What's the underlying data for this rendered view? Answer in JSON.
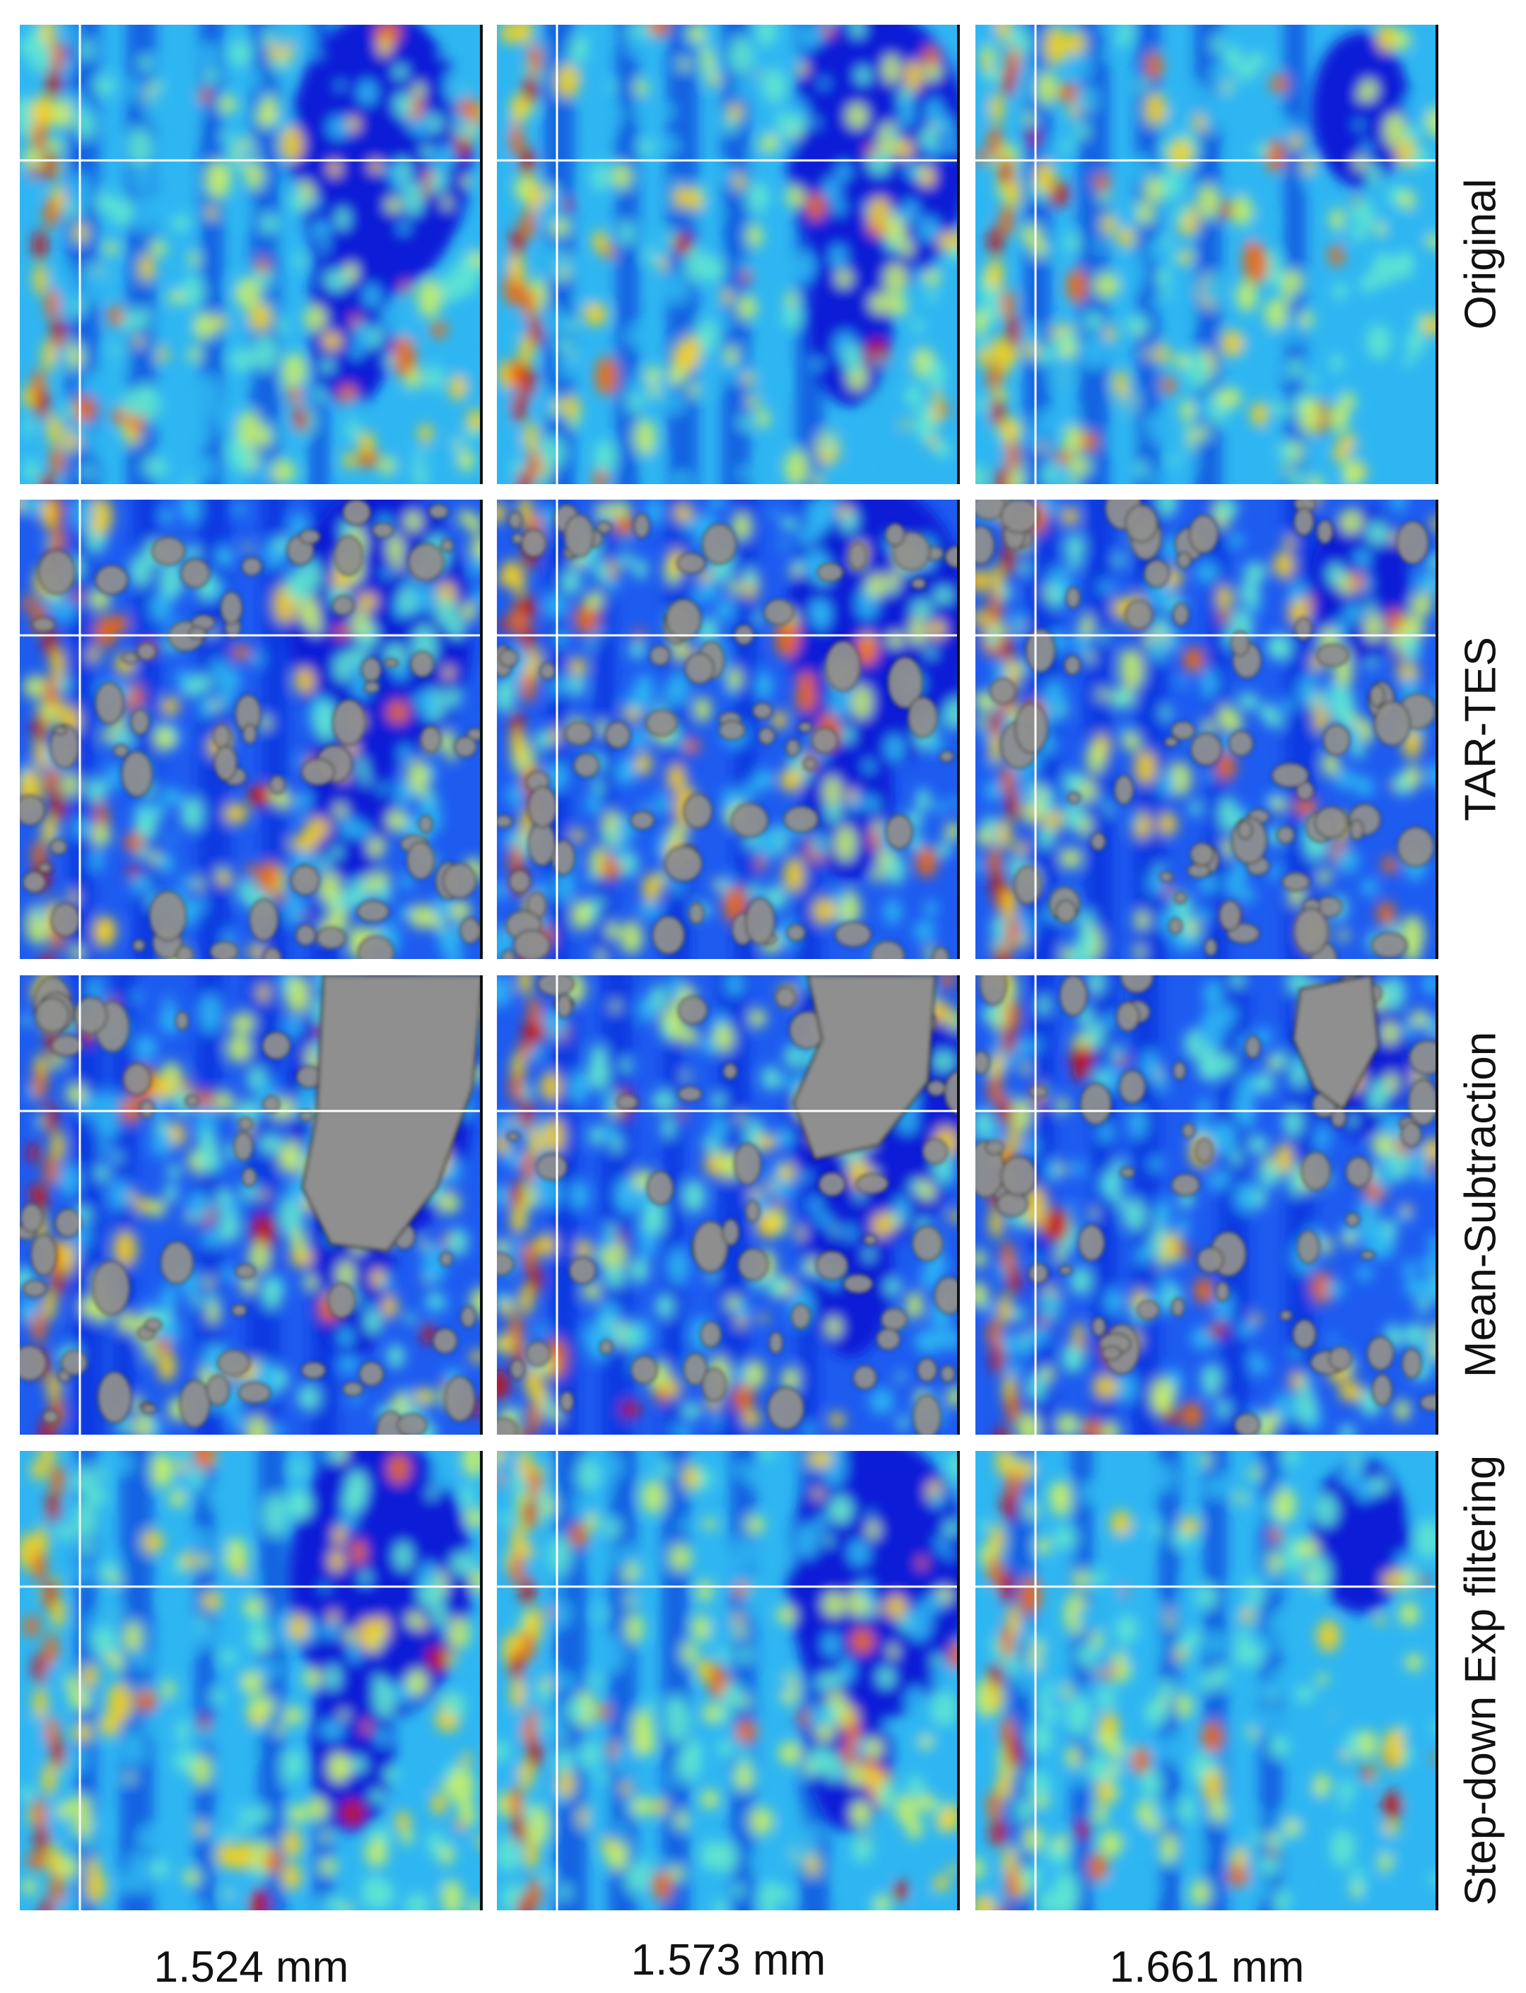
{
  "figure": {
    "row_labels": [
      "Original",
      "TAR-TES",
      "Mean-Subtraction",
      "Step-down Exp filtering"
    ],
    "column_labels": [
      "1.524 mm",
      "1.573 mm",
      "1.661 mm"
    ],
    "panels": [
      {
        "row": "Original",
        "column": "1.524 mm",
        "gray_regions": false
      },
      {
        "row": "Original",
        "column": "1.573 mm",
        "gray_regions": false
      },
      {
        "row": "Original",
        "column": "1.661 mm",
        "gray_regions": false
      },
      {
        "row": "TAR-TES",
        "column": "1.524 mm",
        "gray_regions": true
      },
      {
        "row": "TAR-TES",
        "column": "1.573 mm",
        "gray_regions": true
      },
      {
        "row": "TAR-TES",
        "column": "1.661 mm",
        "gray_regions": true
      },
      {
        "row": "Mean-Subtraction",
        "column": "1.524 mm",
        "gray_regions": true
      },
      {
        "row": "Mean-Subtraction",
        "column": "1.573 mm",
        "gray_regions": true
      },
      {
        "row": "Mean-Subtraction",
        "column": "1.661 mm",
        "gray_regions": true
      },
      {
        "row": "Step-down Exp filtering",
        "column": "1.524 mm",
        "gray_regions": false
      },
      {
        "row": "Step-down Exp filtering",
        "column": "1.573 mm",
        "gray_regions": false
      },
      {
        "row": "Step-down Exp filtering",
        "column": "1.661 mm",
        "gray_regions": false
      }
    ],
    "colormap": [
      "#0a1fd6",
      "#1e5cf0",
      "#2fb6f2",
      "#5fe6d0",
      "#c6f06a",
      "#f5d020",
      "#f06a10",
      "#c81010"
    ],
    "gray_region_color": "#8f8f8f",
    "crosshair_color": "#ffffff",
    "divider_color": "#111111"
  }
}
